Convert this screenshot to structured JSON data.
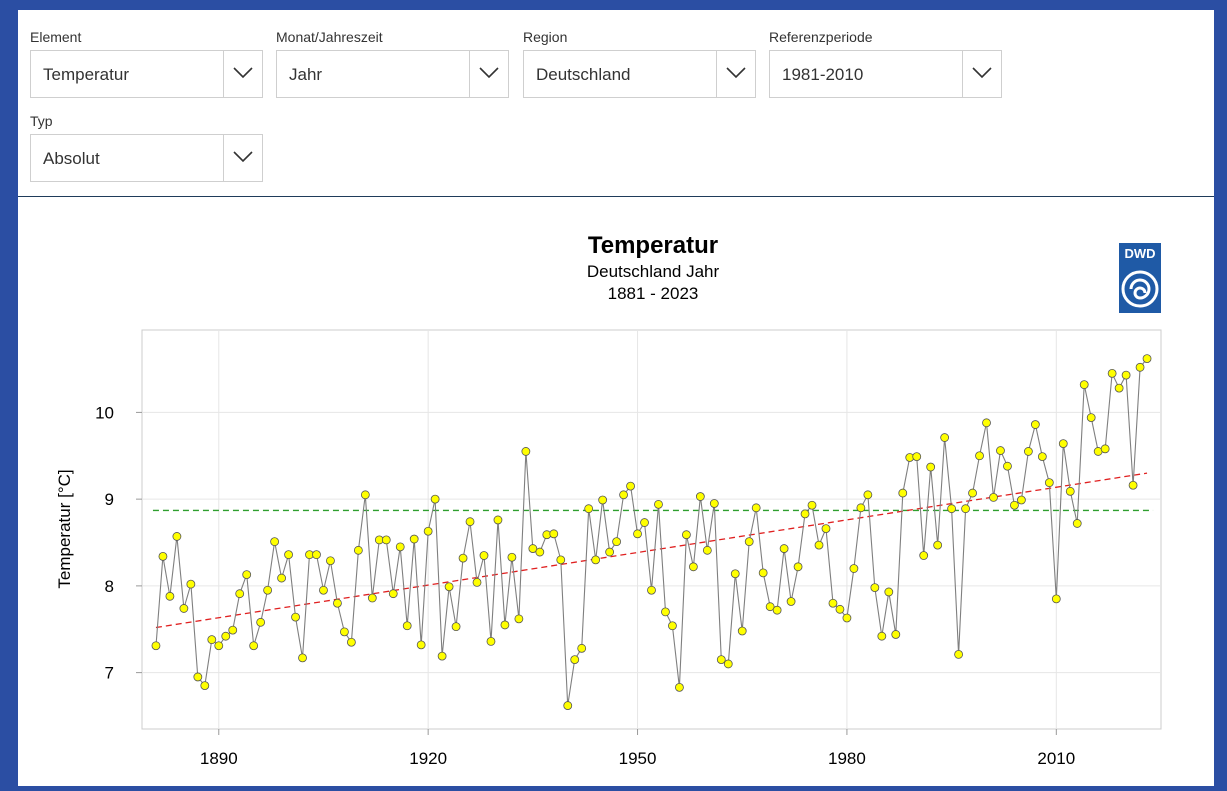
{
  "filters": [
    {
      "label": "Element",
      "value": "Temperatur"
    },
    {
      "label": "Monat/Jahreszeit",
      "value": "Jahr"
    },
    {
      "label": "Region",
      "value": "Deutschland"
    },
    {
      "label": "Referenzperiode",
      "value": "1981-2010"
    },
    {
      "label": "Typ",
      "value": "Absolut"
    }
  ],
  "logo": {
    "text": "DWD",
    "color": "#1f5aa6"
  },
  "chart_data": {
    "type": "line",
    "title": "Temperatur",
    "subtitle": "Deutschland Jahr",
    "period": "1881 - 2023",
    "ylabel": "Temperatur [°C]",
    "xlabel": "",
    "xlim": [
      1879,
      2025
    ],
    "ylim": [
      6.35,
      10.95
    ],
    "x_ticks": [
      1890,
      1920,
      1950,
      1980,
      2010
    ],
    "y_ticks": [
      7,
      8,
      9,
      10
    ],
    "grid": true,
    "reference_mean": 8.87,
    "trend": {
      "start": [
        1881,
        7.52
      ],
      "end": [
        2023,
        9.3
      ]
    },
    "colors": {
      "line": "#7f7f7f",
      "marker": "#ffff00",
      "marker_edge": "#555555",
      "trend": "#e02020",
      "reference": "#2e9e2e"
    },
    "series": [
      {
        "x": [
          1881,
          1882,
          1883,
          1884,
          1885,
          1886,
          1887,
          1888,
          1889,
          1890,
          1891,
          1892,
          1893,
          1894,
          1895,
          1896,
          1897,
          1898,
          1899,
          1900,
          1901,
          1902,
          1903,
          1904,
          1905,
          1906,
          1907,
          1908,
          1909,
          1910,
          1911,
          1912,
          1913,
          1914,
          1915,
          1916,
          1917,
          1918,
          1919,
          1920,
          1921,
          1922,
          1923,
          1924,
          1925,
          1926,
          1927,
          1928,
          1929,
          1930,
          1931,
          1932,
          1933,
          1934,
          1935,
          1936,
          1937,
          1938,
          1939,
          1940,
          1941,
          1942,
          1943,
          1944,
          1945,
          1946,
          1947,
          1948,
          1949,
          1950,
          1951,
          1952,
          1953,
          1954,
          1955,
          1956,
          1957,
          1958,
          1959,
          1960,
          1961,
          1962,
          1963,
          1964,
          1965,
          1966,
          1967,
          1968,
          1969,
          1970,
          1971,
          1972,
          1973,
          1974,
          1975,
          1976,
          1977,
          1978,
          1979,
          1980,
          1981,
          1982,
          1983,
          1984,
          1985,
          1986,
          1987,
          1988,
          1989,
          1990,
          1991,
          1992,
          1993,
          1994,
          1995,
          1996,
          1997,
          1998,
          1999,
          2000,
          2001,
          2002,
          2003,
          2004,
          2005,
          2006,
          2007,
          2008,
          2009,
          2010,
          2011,
          2012,
          2013,
          2014,
          2015,
          2016,
          2017,
          2018,
          2019,
          2020,
          2021,
          2022,
          2023
        ],
        "values": [
          7.31,
          8.34,
          7.88,
          8.57,
          7.74,
          8.02,
          6.95,
          6.85,
          7.38,
          7.31,
          7.42,
          7.49,
          7.91,
          8.13,
          7.31,
          7.58,
          7.95,
          8.51,
          8.09,
          8.36,
          7.64,
          7.17,
          8.36,
          8.36,
          7.95,
          8.29,
          7.8,
          7.47,
          7.35,
          8.41,
          9.05,
          7.86,
          8.53,
          8.53,
          7.91,
          8.45,
          7.54,
          8.54,
          7.32,
          8.63,
          9.0,
          7.19,
          7.99,
          7.53,
          8.32,
          8.74,
          8.04,
          8.35,
          7.36,
          8.76,
          7.55,
          8.33,
          7.62,
          9.55,
          8.43,
          8.39,
          8.59,
          8.6,
          8.3,
          6.62,
          7.15,
          7.28,
          8.89,
          8.3,
          8.99,
          8.39,
          8.51,
          9.05,
          9.15,
          8.6,
          8.73,
          7.95,
          8.94,
          7.7,
          7.54,
          6.83,
          8.59,
          8.22,
          9.03,
          8.41,
          8.95,
          7.15,
          7.1,
          8.14,
          7.48,
          8.51,
          8.9,
          8.15,
          7.76,
          7.72,
          8.43,
          7.82,
          8.22,
          8.83,
          8.93,
          8.47,
          8.66,
          7.8,
          7.73,
          7.63,
          8.2,
          8.9,
          9.05,
          7.98,
          7.42,
          7.93,
          7.44,
          9.07,
          9.48,
          9.49,
          8.35,
          9.37,
          8.47,
          9.71,
          8.89,
          7.21,
          8.89,
          9.07,
          9.5,
          9.88,
          9.02,
          9.56,
          9.38,
          8.93,
          8.99,
          9.55,
          9.86,
          9.49,
          9.19,
          7.85,
          9.64,
          9.09,
          8.72,
          10.32,
          9.94,
          9.55,
          9.58,
          10.45,
          10.28,
          10.43,
          9.16,
          10.52,
          10.62
        ]
      }
    ]
  }
}
